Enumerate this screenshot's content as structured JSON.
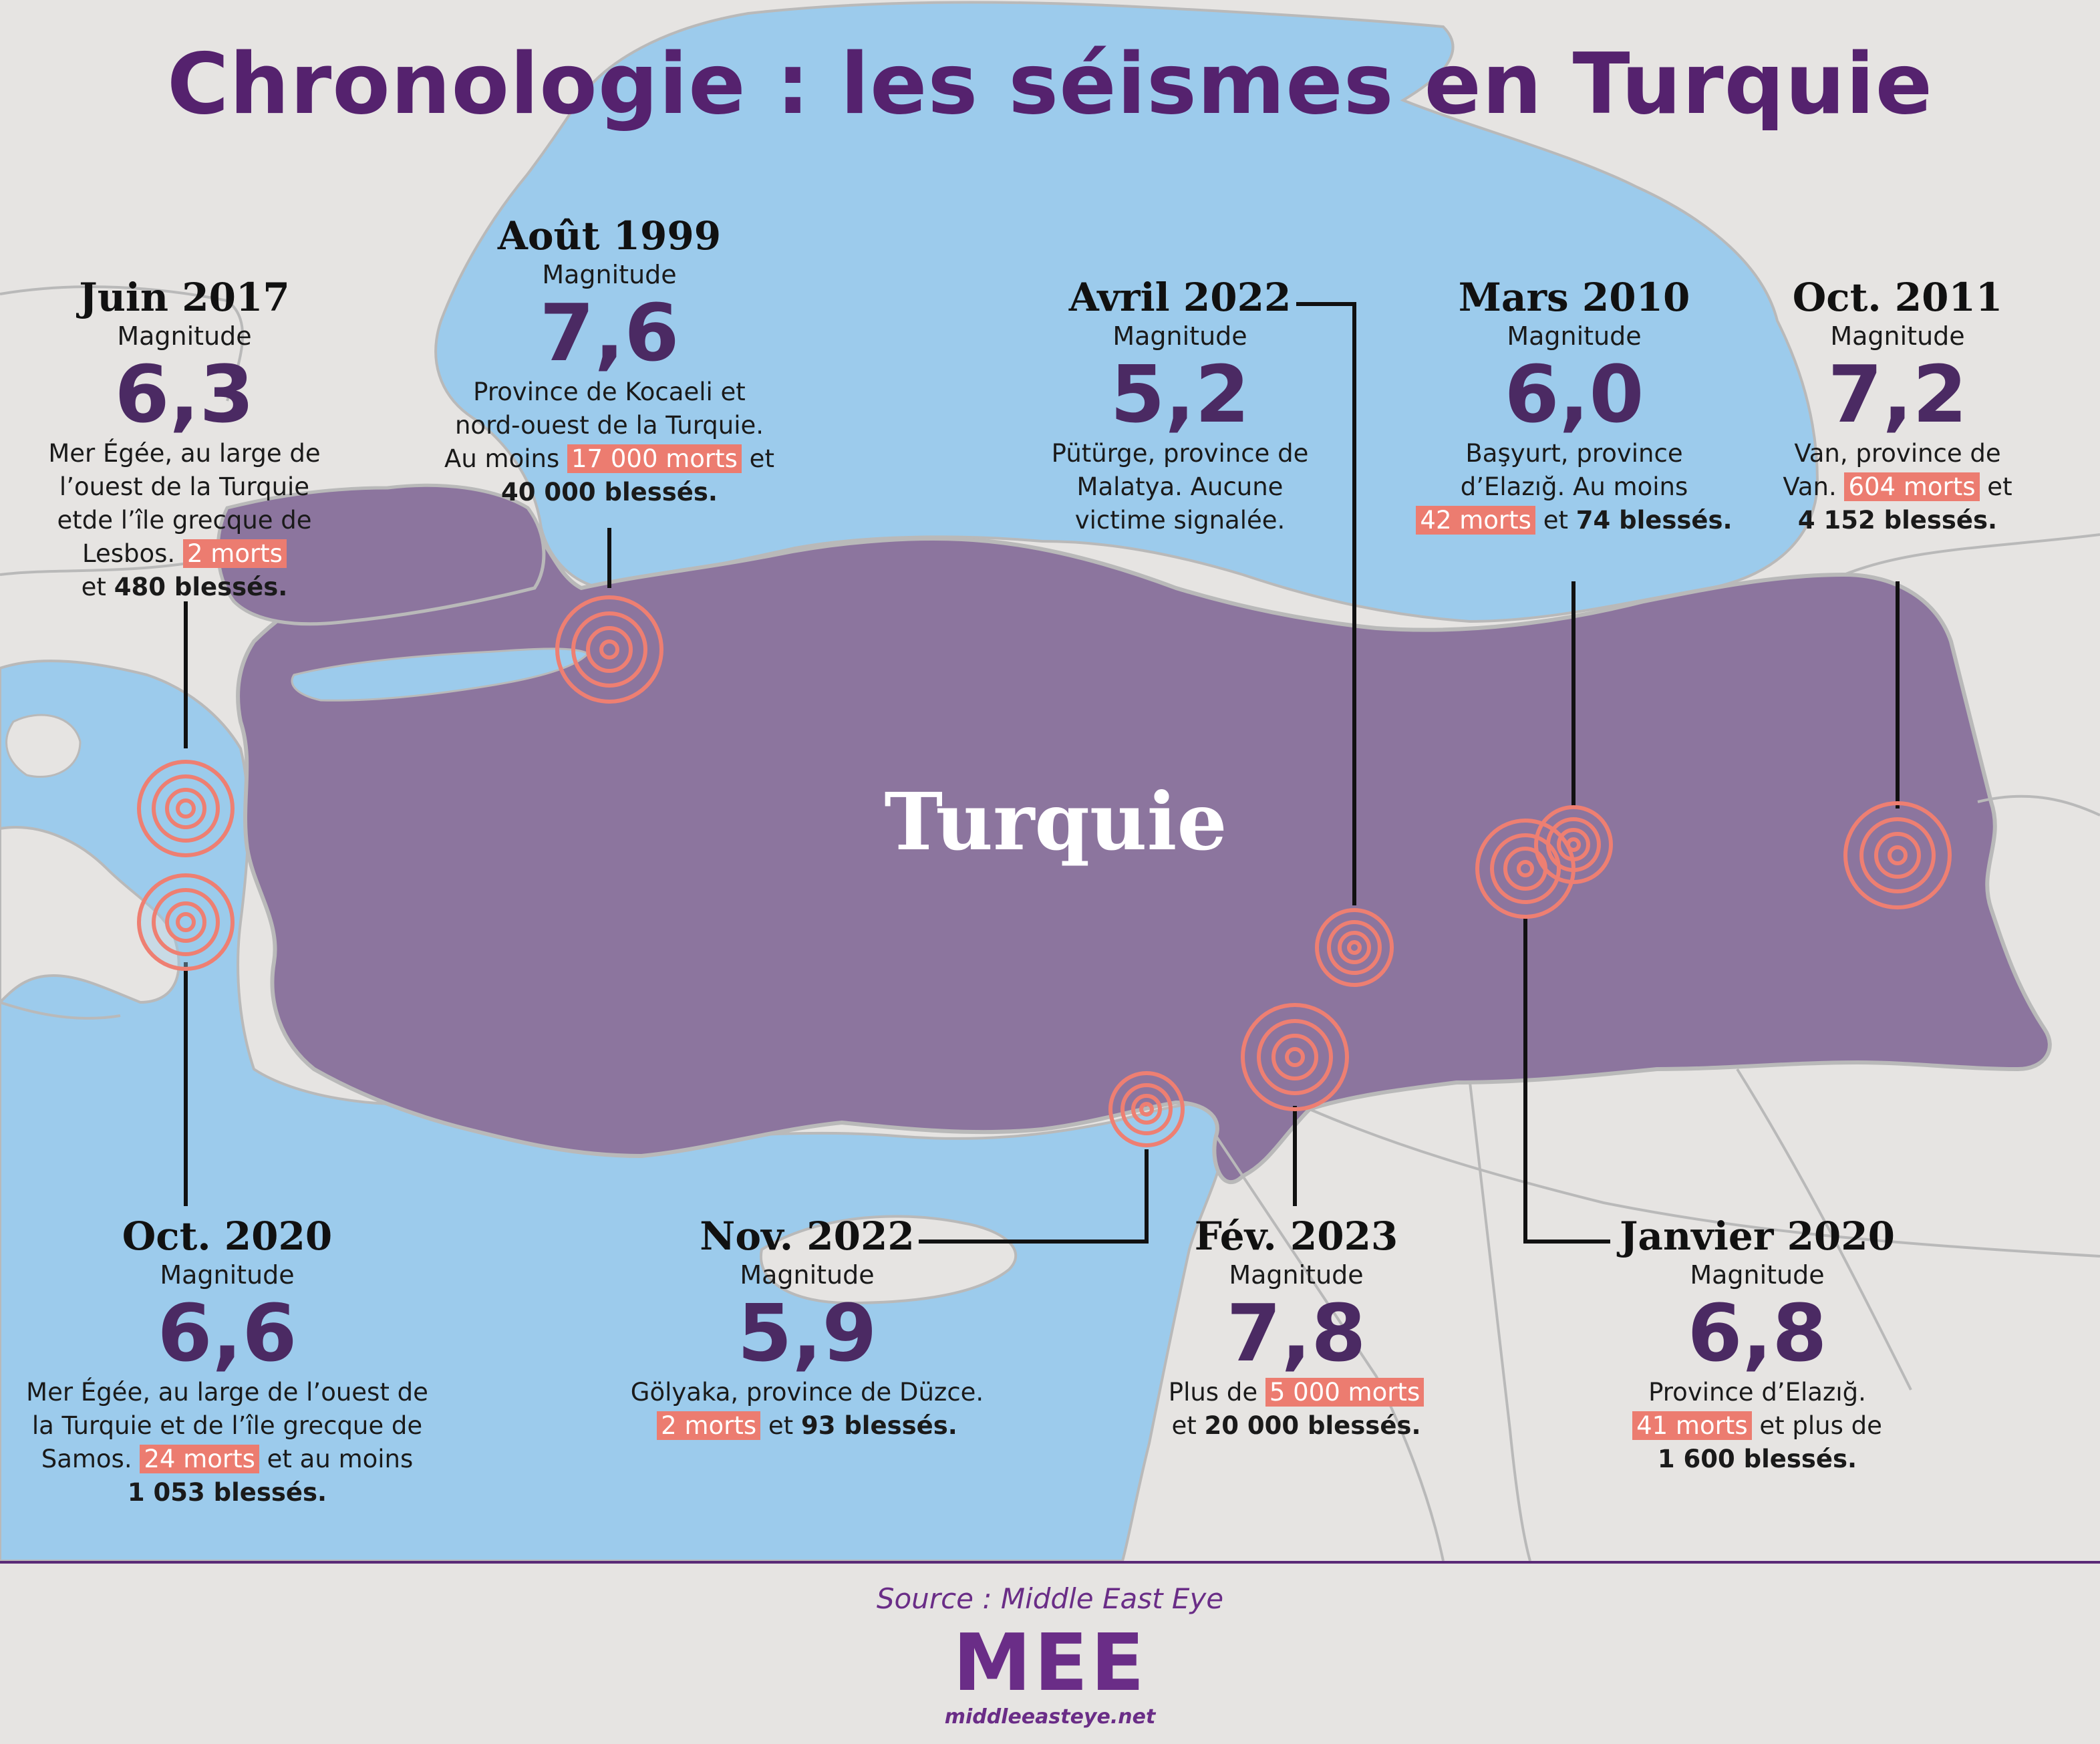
{
  "title": "Chronologie : les séismes en Turquie",
  "map": {
    "country_label": "Turquie",
    "colors": {
      "sea": "#9ccbec",
      "land": "#e6e4e2",
      "turkey": "#8c759e",
      "border": "#b9b9b9",
      "epicenter": "#ee7f72",
      "leader": "#111111"
    }
  },
  "earthquakes": [
    {
      "date": "Juin 2017",
      "magnitude_label": "Magnitude",
      "magnitude": "6,3",
      "lines": [
        [
          "Mer Égée, au large de"
        ],
        [
          "l’ouest de la Turquie"
        ],
        [
          "etde l’île grecque de"
        ],
        [
          "Lesbos. ",
          {
            "h": "2 morts"
          }
        ],
        [
          "et ",
          {
            "b": "480 blessés."
          }
        ]
      ]
    },
    {
      "date": "Août 1999",
      "magnitude_label": "Magnitude",
      "magnitude": "7,6",
      "lines": [
        [
          "Province de Kocaeli et"
        ],
        [
          "nord-ouest de la Turquie."
        ],
        [
          "Au moins ",
          {
            "h": "17 000 morts"
          },
          " et"
        ],
        [
          {
            "b": "40 000 blessés."
          }
        ]
      ]
    },
    {
      "date": "Avril 2022",
      "magnitude_label": "Magnitude",
      "magnitude": "5,2",
      "lines": [
        [
          "Pütürge, province de"
        ],
        [
          "Malatya. Aucune"
        ],
        [
          "victime signalée."
        ]
      ]
    },
    {
      "date": "Mars 2010",
      "magnitude_label": "Magnitude",
      "magnitude": "6,0",
      "lines": [
        [
          "Başyurt, province"
        ],
        [
          "d’Elazığ. Au moins"
        ],
        [
          {
            "h": "42 morts"
          },
          " et ",
          {
            "b": "74 blessés."
          }
        ]
      ]
    },
    {
      "date": "Oct. 2011",
      "magnitude_label": "Magnitude",
      "magnitude": "7,2",
      "lines": [
        [
          "Van, province de"
        ],
        [
          "Van. ",
          {
            "h": "604 morts"
          },
          " et"
        ],
        [
          {
            "b": "4 152 blessés."
          }
        ]
      ]
    },
    {
      "date": "Oct. 2020",
      "magnitude_label": "Magnitude",
      "magnitude": "6,6",
      "lines": [
        [
          "Mer Égée, au large de l’ouest de"
        ],
        [
          "la Turquie et de l’île grecque de"
        ],
        [
          "Samos. ",
          {
            "h": "24 morts"
          },
          " et au moins"
        ],
        [
          {
            "b": "1 053 blessés."
          }
        ]
      ]
    },
    {
      "date": "Nov. 2022",
      "magnitude_label": "Magnitude",
      "magnitude": "5,9",
      "lines": [
        [
          "Gölyaka, province de Düzce."
        ],
        [
          {
            "h": "2 morts"
          },
          " et ",
          {
            "b": "93 blessés."
          }
        ]
      ]
    },
    {
      "date": "Fév. 2023",
      "magnitude_label": "Magnitude",
      "magnitude": "7,8",
      "lines": [
        [
          "Plus de ",
          {
            "h": "5 000 morts"
          }
        ],
        [
          "et ",
          {
            "b": "20 000 blessés."
          }
        ]
      ]
    },
    {
      "date": "Janvier 2020",
      "magnitude_label": "Magnitude",
      "magnitude": "6,8",
      "lines": [
        [
          "Province d’Elazığ."
        ],
        [
          {
            "h": "41 morts"
          },
          " et plus de"
        ],
        [
          {
            "b": "1 600 blessés."
          }
        ]
      ]
    }
  ],
  "footer": {
    "source": "Source : Middle East Eye",
    "logo": "MEE",
    "url": "middleeasteye.net"
  }
}
